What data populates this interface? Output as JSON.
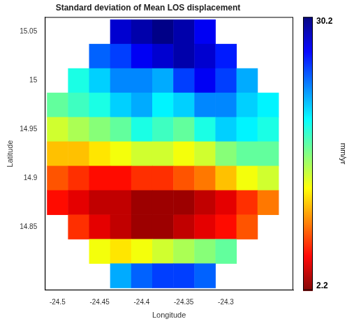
{
  "chart_data": {
    "type": "heatmap",
    "title": "Standard deviation of Mean LOS displacement",
    "x_label": "Longitude",
    "y_label": "Latitude",
    "x": [
      -24.5,
      -24.475,
      -24.45,
      -24.425,
      -24.4,
      -24.375,
      -24.35,
      -24.325,
      -24.3,
      -24.275,
      -24.25
    ],
    "y": [
      15.05,
      15.025,
      15.0,
      14.975,
      14.95,
      14.925,
      14.9,
      14.875,
      14.85,
      14.825,
      14.8
    ],
    "cells": [
      [
        null,
        null,
        null,
        28,
        29,
        30,
        29,
        27,
        null,
        null,
        null
      ],
      [
        null,
        null,
        24,
        25,
        27,
        28,
        29,
        28,
        26,
        null,
        null
      ],
      [
        null,
        19,
        21,
        23,
        23,
        22,
        25,
        27,
        25,
        22,
        null
      ],
      [
        17,
        18,
        19,
        21,
        22,
        20,
        21,
        23,
        23,
        21,
        20
      ],
      [
        14,
        15,
        16,
        17,
        19,
        18,
        17,
        19,
        21,
        20,
        19
      ],
      [
        11,
        11,
        12,
        13,
        14,
        14,
        13,
        14,
        16,
        17,
        17
      ],
      [
        8,
        7,
        6,
        6,
        7,
        7,
        8,
        9,
        11,
        13,
        14
      ],
      [
        6,
        5,
        4,
        4,
        3,
        3,
        3,
        4,
        5,
        7,
        9
      ],
      [
        null,
        7,
        5,
        4,
        3,
        3,
        4,
        5,
        6,
        8,
        null
      ],
      [
        null,
        null,
        13,
        12,
        13,
        14,
        15,
        16,
        17,
        null,
        null
      ],
      [
        null,
        null,
        null,
        22,
        24,
        25,
        25,
        24,
        null,
        null,
        null
      ]
    ],
    "xlim": [
      -24.515,
      -24.22
    ],
    "ylim": [
      14.785,
      15.065
    ],
    "xticks": [
      -24.5,
      -24.45,
      -24.4,
      -24.35,
      -24.3
    ],
    "yticks": [
      14.85,
      14.9,
      14.95,
      15,
      15.05
    ],
    "grid": false,
    "colorbar": {
      "range": [
        2.2,
        30.2
      ],
      "ticks": [
        2.2,
        30.2
      ],
      "label": "mm/yr"
    }
  }
}
